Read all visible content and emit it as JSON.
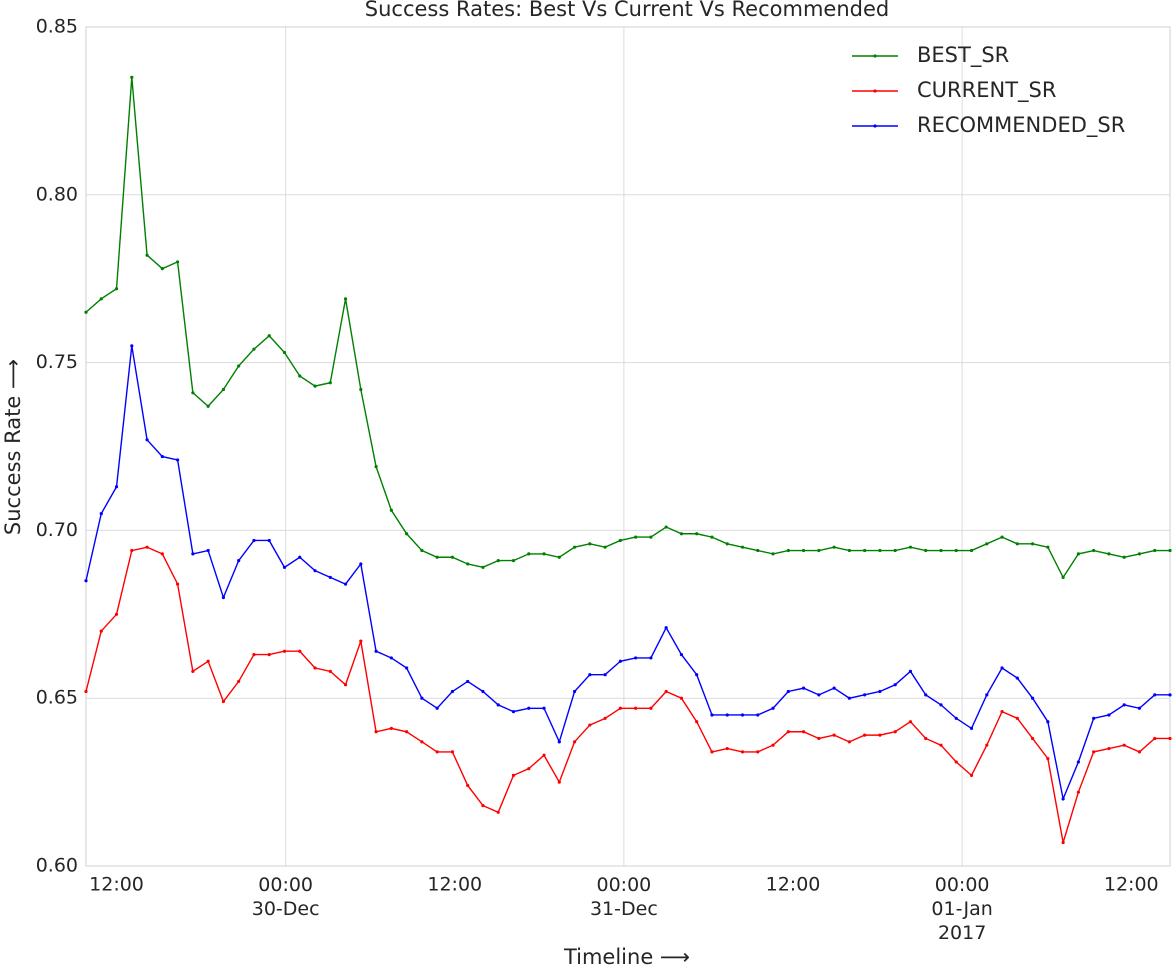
{
  "chart_data": {
    "type": "line",
    "title": "Success Rates: Best Vs Current Vs Recommended",
    "x_label": "Timeline ⟶",
    "y_label": "Success Rate ⟶",
    "x": [
      "29-Dec 09:50",
      "29-Dec 10:55",
      "29-Dec 12:00",
      "29-Dec 13:05",
      "29-Dec 14:10",
      "29-Dec 15:15",
      "29-Dec 16:20",
      "29-Dec 17:25",
      "29-Dec 18:30",
      "29-Dec 19:35",
      "29-Dec 20:40",
      "29-Dec 21:45",
      "29-Dec 22:50",
      "29-Dec 23:55",
      "30-Dec 01:00",
      "30-Dec 02:05",
      "30-Dec 03:10",
      "30-Dec 04:15",
      "30-Dec 05:20",
      "30-Dec 06:25",
      "30-Dec 07:30",
      "30-Dec 08:35",
      "30-Dec 09:40",
      "30-Dec 10:45",
      "30-Dec 11:50",
      "30-Dec 12:55",
      "30-Dec 14:00",
      "30-Dec 15:05",
      "30-Dec 16:10",
      "30-Dec 17:15",
      "30-Dec 18:20",
      "30-Dec 19:25",
      "30-Dec 20:30",
      "30-Dec 21:35",
      "30-Dec 22:40",
      "30-Dec 23:45",
      "31-Dec 00:50",
      "31-Dec 01:55",
      "31-Dec 03:00",
      "31-Dec 04:05",
      "31-Dec 05:10",
      "31-Dec 06:15",
      "31-Dec 07:20",
      "31-Dec 08:25",
      "31-Dec 09:30",
      "31-Dec 10:35",
      "31-Dec 11:40",
      "31-Dec 12:45",
      "31-Dec 13:50",
      "31-Dec 14:55",
      "31-Dec 16:00",
      "31-Dec 17:05",
      "31-Dec 18:10",
      "31-Dec 19:15",
      "31-Dec 20:20",
      "31-Dec 21:25",
      "31-Dec 22:30",
      "31-Dec 23:35",
      "01-Jan 00:40",
      "01-Jan 01:45",
      "01-Jan 02:50",
      "01-Jan 03:55",
      "01-Jan 05:00",
      "01-Jan 06:05",
      "01-Jan 07:10",
      "01-Jan 08:15",
      "01-Jan 09:20",
      "01-Jan 10:25",
      "01-Jan 11:30",
      "01-Jan 12:35",
      "01-Jan 13:40",
      "01-Jan 14:45"
    ],
    "series": [
      {
        "name": "BEST_SR",
        "color": "#008000",
        "values": [
          0.765,
          0.769,
          0.772,
          0.835,
          0.782,
          0.778,
          0.78,
          0.741,
          0.737,
          0.742,
          0.749,
          0.754,
          0.758,
          0.753,
          0.746,
          0.743,
          0.744,
          0.769,
          0.742,
          0.719,
          0.706,
          0.699,
          0.694,
          0.692,
          0.692,
          0.69,
          0.689,
          0.691,
          0.691,
          0.693,
          0.693,
          0.692,
          0.695,
          0.696,
          0.695,
          0.697,
          0.698,
          0.698,
          0.701,
          0.699,
          0.699,
          0.698,
          0.696,
          0.695,
          0.694,
          0.693,
          0.694,
          0.694,
          0.694,
          0.695,
          0.694,
          0.694,
          0.694,
          0.694,
          0.695,
          0.694,
          0.694,
          0.694,
          0.694,
          0.696,
          0.698,
          0.696,
          0.696,
          0.695,
          0.686,
          0.693,
          0.694,
          0.693,
          0.692,
          0.693,
          0.694,
          0.694
        ]
      },
      {
        "name": "CURRENT_SR",
        "color": "#ff0000",
        "values": [
          0.652,
          0.67,
          0.675,
          0.694,
          0.695,
          0.693,
          0.684,
          0.658,
          0.661,
          0.649,
          0.655,
          0.663,
          0.663,
          0.664,
          0.664,
          0.659,
          0.658,
          0.654,
          0.667,
          0.64,
          0.641,
          0.64,
          0.637,
          0.634,
          0.634,
          0.624,
          0.618,
          0.616,
          0.627,
          0.629,
          0.633,
          0.625,
          0.637,
          0.642,
          0.644,
          0.647,
          0.647,
          0.647,
          0.652,
          0.65,
          0.643,
          0.634,
          0.635,
          0.634,
          0.634,
          0.636,
          0.64,
          0.64,
          0.638,
          0.639,
          0.637,
          0.639,
          0.639,
          0.64,
          0.643,
          0.638,
          0.636,
          0.631,
          0.627,
          0.636,
          0.646,
          0.644,
          0.638,
          0.632,
          0.607,
          0.622,
          0.634,
          0.635,
          0.636,
          0.634,
          0.638,
          0.638
        ]
      },
      {
        "name": "RECOMMENDED_SR",
        "color": "#0000ff",
        "values": [
          0.685,
          0.705,
          0.713,
          0.755,
          0.727,
          0.722,
          0.721,
          0.693,
          0.694,
          0.68,
          0.691,
          0.697,
          0.697,
          0.689,
          0.692,
          0.688,
          0.686,
          0.684,
          0.69,
          0.664,
          0.662,
          0.659,
          0.65,
          0.647,
          0.652,
          0.655,
          0.652,
          0.648,
          0.646,
          0.647,
          0.647,
          0.637,
          0.652,
          0.657,
          0.657,
          0.661,
          0.662,
          0.662,
          0.671,
          0.663,
          0.657,
          0.645,
          0.645,
          0.645,
          0.645,
          0.647,
          0.652,
          0.653,
          0.651,
          0.653,
          0.65,
          0.651,
          0.652,
          0.654,
          0.658,
          0.651,
          0.648,
          0.644,
          0.641,
          0.651,
          0.659,
          0.656,
          0.65,
          0.643,
          0.62,
          0.631,
          0.644,
          0.645,
          0.648,
          0.647,
          0.651,
          0.651
        ]
      }
    ],
    "xlim": [
      "29-Dec 09:50",
      "01-Jan 14:45"
    ],
    "xticks": [
      {
        "value": "30-Dec 00:00",
        "label": "00:00\n30-Dec"
      },
      {
        "value": "31-Dec 00:00",
        "label": "00:00\n31-Dec"
      },
      {
        "value": "01-Jan 00:00",
        "label": "00:00\n01-Jan\n2017"
      }
    ],
    "xminor_ticks": [
      {
        "value": "29-Dec 12:00",
        "label": "12:00"
      },
      {
        "value": "30-Dec 12:00",
        "label": "12:00"
      },
      {
        "value": "31-Dec 12:00",
        "label": "12:00"
      },
      {
        "value": "01-Jan 12:00",
        "label": "12:00"
      }
    ],
    "ylim": [
      0.6,
      0.85
    ],
    "yticks": [
      {
        "value": 0.6,
        "label": "0.60"
      },
      0.65,
      {
        "value": 0.7,
        "label": "0.70"
      },
      0.75,
      {
        "value": 0.8,
        "label": "0.80"
      },
      0.85
    ],
    "grid": true,
    "legend": "upper right"
  }
}
